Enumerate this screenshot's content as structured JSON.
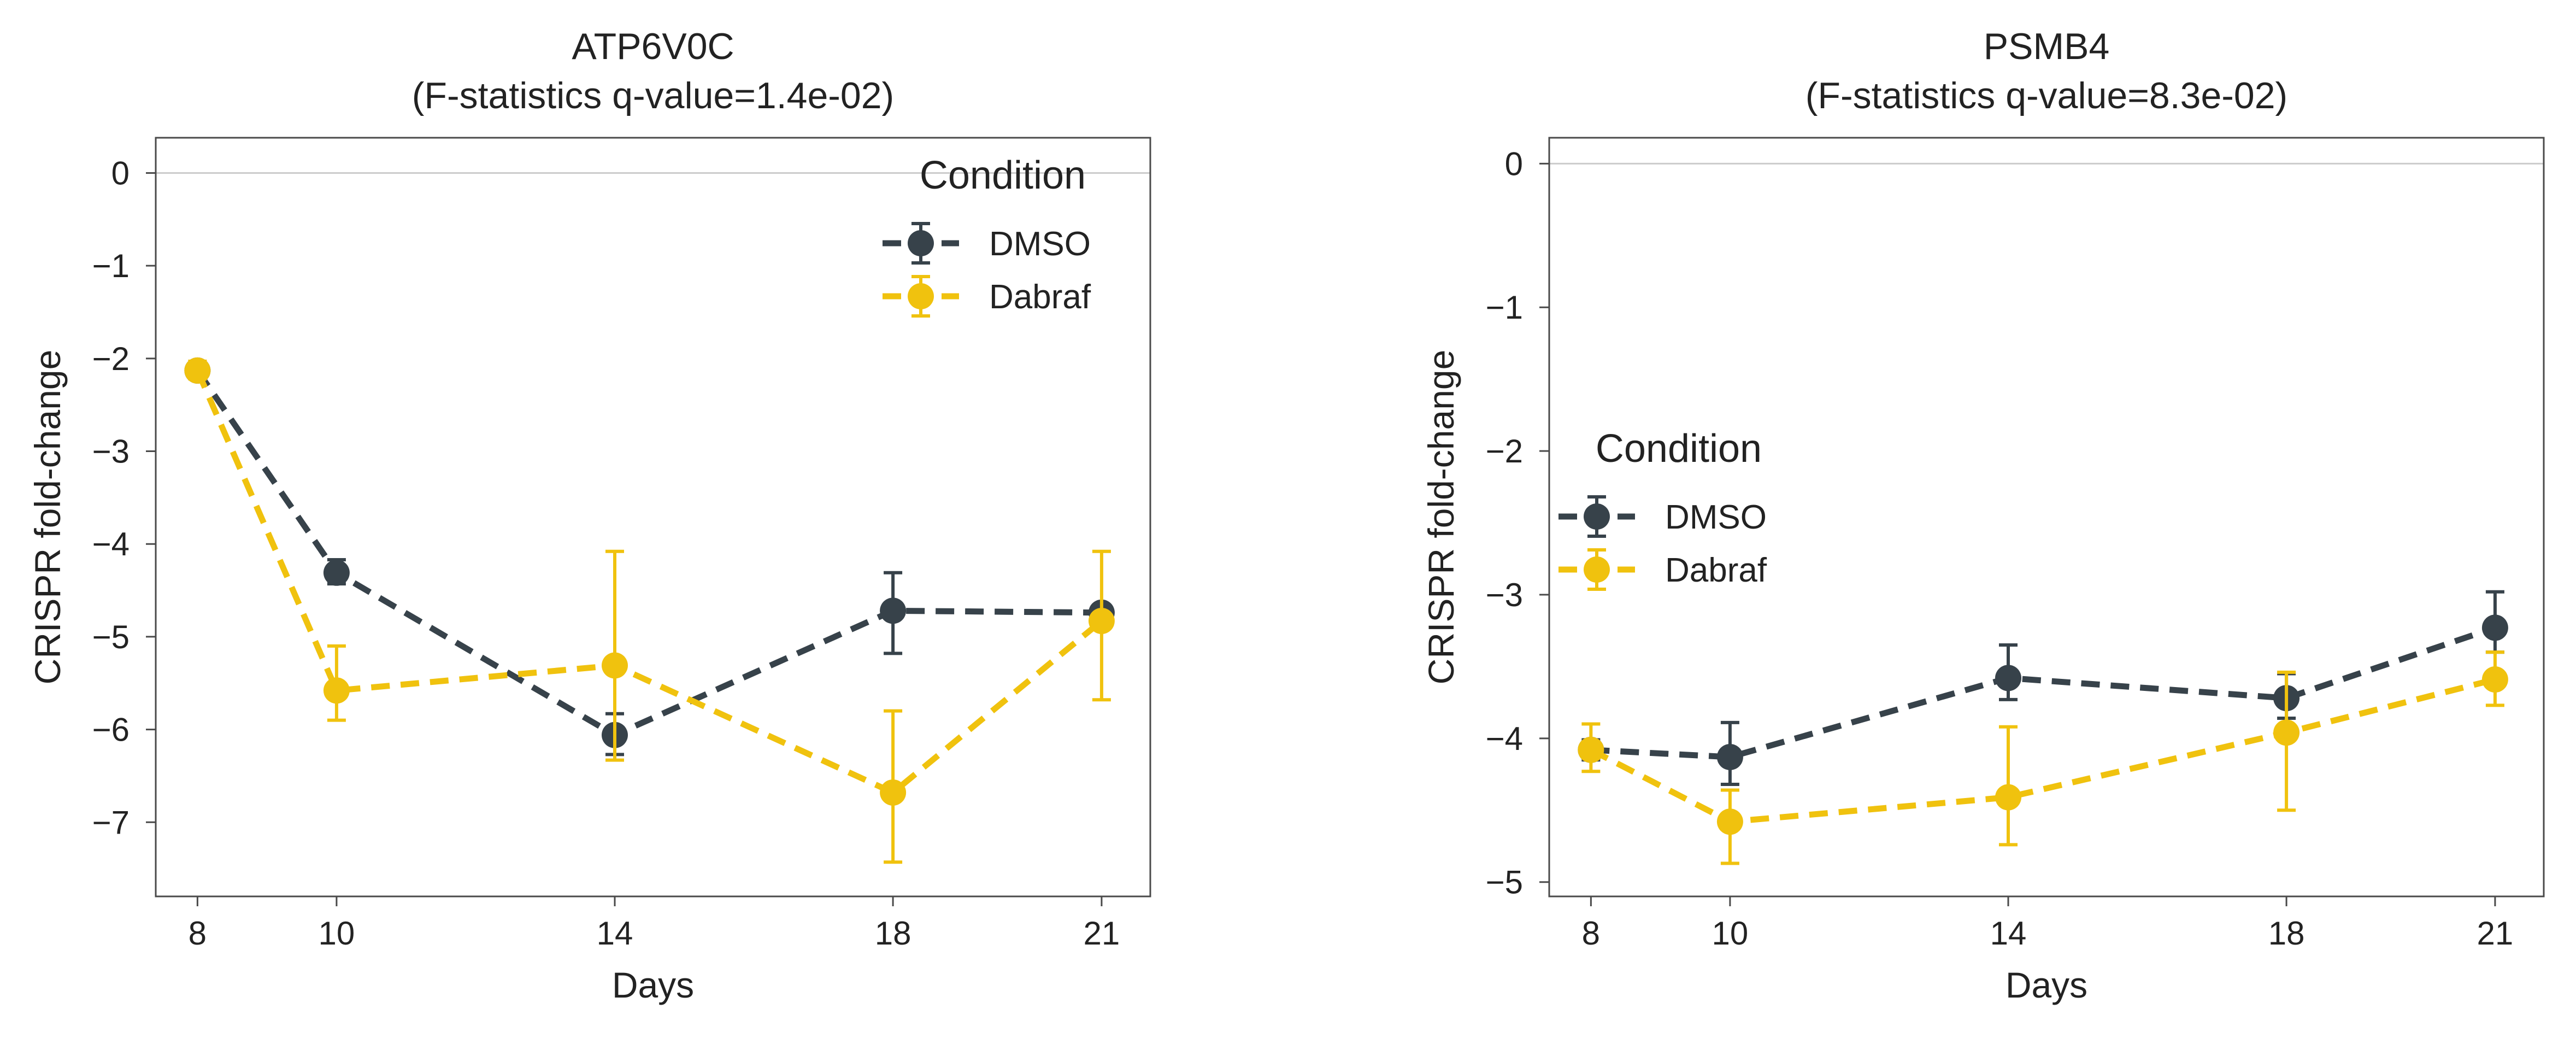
{
  "chart_data": [
    {
      "type": "line",
      "title": "ATP6V0C",
      "subtitle": "(F-statistics q-value=1.4e-02)",
      "xlabel": "Days",
      "ylabel": "CRISPR fold-change",
      "x": [
        8,
        10,
        14,
        18,
        21
      ],
      "x_ticks": [
        "8",
        "10",
        "14",
        "18",
        "21"
      ],
      "y_ticks": [
        "0",
        "−1",
        "−2",
        "−3",
        "−4",
        "−5",
        "−6",
        "−7"
      ],
      "xlim": [
        7.4,
        21.7
      ],
      "ylim": [
        -7.8,
        0.38
      ],
      "grid": false,
      "reference_line_y": 0,
      "legend": {
        "title": "Condition",
        "placement": "top-right"
      },
      "series": [
        {
          "name": "DMSO",
          "color": "#37424a",
          "values": [
            -2.13,
            -4.31,
            -6.06,
            -4.72,
            -4.74
          ],
          "err_low": [
            -2.2,
            -4.43,
            -6.27,
            -5.18,
            -4.81
          ],
          "err_high": [
            -2.06,
            -4.17,
            -5.83,
            -4.31,
            -4.67
          ]
        },
        {
          "name": "Dabraf",
          "color": "#f0c20e",
          "values": [
            -2.13,
            -5.58,
            -5.31,
            -6.68,
            -4.83
          ],
          "err_low": [
            -2.22,
            -5.9,
            -6.33,
            -7.43,
            -5.68
          ],
          "err_high": [
            -2.03,
            -5.1,
            -4.08,
            -5.8,
            -4.08
          ]
        }
      ]
    },
    {
      "type": "line",
      "title": "PSMB4",
      "subtitle": "(F-statistics q-value=8.3e-02)",
      "xlabel": "Days",
      "ylabel": "CRISPR fold-change",
      "x": [
        8,
        10,
        14,
        18,
        21
      ],
      "x_ticks": [
        "8",
        "10",
        "14",
        "18",
        "21"
      ],
      "y_ticks": [
        "0",
        "−1",
        "−2",
        "−3",
        "−4",
        "−5"
      ],
      "xlim": [
        7.4,
        21.7
      ],
      "ylim": [
        -5.1,
        0.18
      ],
      "grid": false,
      "reference_line_y": 0,
      "legend": {
        "title": "Condition",
        "placement": "center-left"
      },
      "series": [
        {
          "name": "DMSO",
          "color": "#37424a",
          "values": [
            -4.08,
            -4.13,
            -3.58,
            -3.72,
            -3.23
          ],
          "err_low": [
            -4.15,
            -4.32,
            -3.73,
            -3.86,
            -3.4
          ],
          "err_high": [
            -4.01,
            -3.89,
            -3.35,
            -3.55,
            -2.98
          ]
        },
        {
          "name": "Dabraf",
          "color": "#f0c20e",
          "values": [
            -4.08,
            -4.58,
            -4.41,
            -3.96,
            -3.59
          ],
          "err_low": [
            -4.23,
            -4.87,
            -4.74,
            -4.5,
            -3.77
          ],
          "err_high": [
            -3.9,
            -4.36,
            -3.92,
            -3.54,
            -3.4
          ]
        }
      ]
    }
  ]
}
